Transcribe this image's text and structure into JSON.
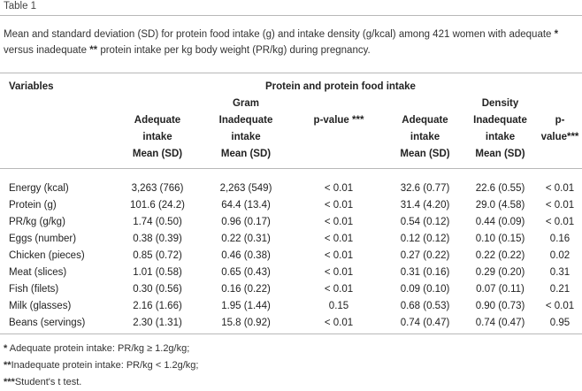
{
  "table_label": "Table 1",
  "caption": {
    "part1": "Mean and standard deviation (SD) for protein food intake (g) and intake density (g/kcal) among 421 women with adequate ",
    "mark1": "*",
    "part2": " versus inadequate ",
    "mark2": "**",
    "part3": " protein intake per kg body weight (PR/kg) during pregnancy."
  },
  "header": {
    "variables": "Variables",
    "group_title": "Protein and protein food intake",
    "columns": [
      {
        "top": "",
        "lines": [
          "Adequate",
          "intake",
          "Mean (SD)"
        ]
      },
      {
        "top": "Gram",
        "lines": [
          "Inadequate",
          "intake",
          "Mean (SD)"
        ]
      },
      {
        "top": "",
        "lines": [
          "p-value ***",
          "",
          ""
        ]
      },
      {
        "top": "",
        "lines": [
          "Adequate",
          "intake",
          "Mean (SD)"
        ]
      },
      {
        "top": "Density",
        "lines": [
          "Inadequate",
          "intake",
          "Mean (SD)"
        ]
      },
      {
        "top": "",
        "lines": [
          "p-value***",
          "",
          ""
        ]
      }
    ]
  },
  "rows": [
    {
      "variable": "Energy (kcal)",
      "c1": "3,263 (766)",
      "c2": "2,263 (549)",
      "c3": "< 0.01",
      "c4": "32.6 (0.77)",
      "c5": "22.6 (0.55)",
      "c6": "< 0.01"
    },
    {
      "variable": "Protein (g)",
      "c1": "101.6 (24.2)",
      "c2": "64.4 (13.4)",
      "c3": "< 0.01",
      "c4": "31.4 (4.20)",
      "c5": "29.0 (4.58)",
      "c6": "< 0.01"
    },
    {
      "variable": "PR/kg (g/kg)",
      "c1": "1.74 (0.50)",
      "c2": "0.96 (0.17)",
      "c3": "< 0.01",
      "c4": "0.54 (0.12)",
      "c5": "0.44 (0.09)",
      "c6": "< 0.01"
    },
    {
      "variable": "Eggs (number)",
      "c1": "0.38 (0.39)",
      "c2": "0.22 (0.31)",
      "c3": "< 0.01",
      "c4": "0.12 (0.12)",
      "c5": "0.10 (0.15)",
      "c6": "0.16"
    },
    {
      "variable": "Chicken (pieces)",
      "c1": "0.85 (0.72)",
      "c2": "0.46 (0.38)",
      "c3": "< 0.01",
      "c4": "0.27 (0.22)",
      "c5": "0.22 (0.22)",
      "c6": "0.02"
    },
    {
      "variable": "Meat (slices)",
      "c1": "1.01 (0.58)",
      "c2": "0.65 (0.43)",
      "c3": "< 0.01",
      "c4": "0.31 (0.16)",
      "c5": "0.29 (0.20)",
      "c6": "0.31"
    },
    {
      "variable": "Fish (filets)",
      "c1": "0.30 (0.56)",
      "c2": "0.16 (0.22)",
      "c3": "< 0.01",
      "c4": "0.09 (0.10)",
      "c5": "0.07 (0.11)",
      "c6": "0.21"
    },
    {
      "variable": "Milk (glasses)",
      "c1": "2.16 (1.66)",
      "c2": "1.95 (1.44)",
      "c3": "0.15",
      "c4": "0.68 (0.53)",
      "c5": "0.90 (0.73)",
      "c6": "< 0.01"
    },
    {
      "variable": "Beans (servings)",
      "c1": "2.30 (1.31)",
      "c2": "15.8 (0.92)",
      "c3": "< 0.01",
      "c4": "0.74 (0.47)",
      "c5": "0.74 (0.47)",
      "c6": "0.95"
    }
  ],
  "notes": [
    {
      "mark": "*",
      "text": " Adequate protein intake: PR/kg ≥ 1.2g/kg;"
    },
    {
      "mark": "**",
      "text": "Inadequate protein intake: PR/kg < 1.2g/kg;"
    },
    {
      "mark": "***",
      "text": "Student's t test."
    }
  ]
}
